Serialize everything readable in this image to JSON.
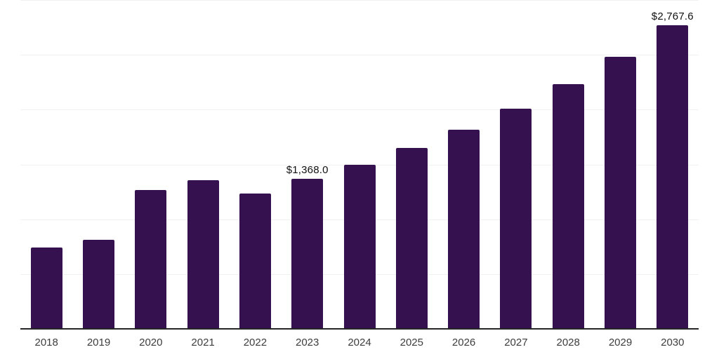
{
  "chart_data": {
    "type": "bar",
    "title": "",
    "categories": [
      "2018",
      "2019",
      "2020",
      "2021",
      "2022",
      "2023",
      "2024",
      "2025",
      "2026",
      "2027",
      "2028",
      "2029",
      "2030"
    ],
    "values": [
      740,
      812,
      1270,
      1355,
      1237,
      1368.0,
      1495,
      1650,
      1820,
      2010,
      2230,
      2483,
      2767.6
    ],
    "value_labels": [
      "",
      "",
      "",
      "",
      "",
      "$1,368.0",
      "",
      "",
      "",
      "",
      "",
      "",
      "$2,767.6"
    ],
    "xlabel": "",
    "ylabel": "",
    "ylim": [
      0,
      3000
    ],
    "gridline_step": 500,
    "grid": true,
    "legend": false,
    "y_axis_labels_visible": false,
    "colors": {
      "bar": "#36114F",
      "axis_line": "#262626",
      "gridline": "#f1f1f1",
      "tick_label": "#3d3d3d",
      "value_label": "#111111",
      "background": "#ffffff"
    }
  }
}
